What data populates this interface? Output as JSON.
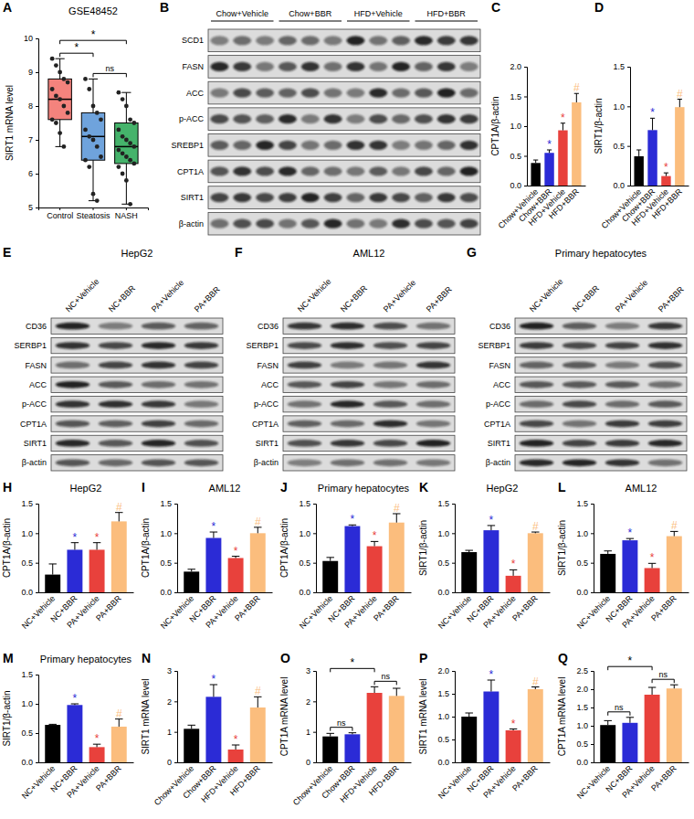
{
  "chart_data": [
    {
      "panel_label": "A",
      "type": "box",
      "title": "GSE48452",
      "y_label": "SIRT1 mRNA level",
      "categories": [
        "Control",
        "Steatosis",
        "NASH"
      ],
      "colors": [
        "#f4837d",
        "#6fa3dc",
        "#45b36b"
      ],
      "boxes": [
        {
          "min": 6.8,
          "q1": 7.6,
          "median": 8.2,
          "q3": 8.8,
          "max": 9.4
        },
        {
          "min": 5.2,
          "q1": 6.4,
          "median": 7.1,
          "q3": 7.8,
          "max": 8.8
        },
        {
          "min": 5.1,
          "q1": 6.3,
          "median": 6.8,
          "q3": 7.5,
          "max": 8.4
        }
      ],
      "points": [
        [
          9.4,
          9.2,
          9.0,
          8.8,
          8.7,
          8.5,
          8.3,
          8.2,
          8.0,
          7.8,
          7.6,
          7.5,
          7.2,
          6.8
        ],
        [
          8.8,
          8.5,
          8.0,
          7.8,
          7.6,
          7.3,
          7.1,
          7.0,
          6.8,
          6.5,
          6.4,
          6.2,
          5.4,
          5.2
        ],
        [
          8.4,
          8.2,
          8.0,
          7.6,
          7.5,
          7.3,
          7.1,
          7.0,
          6.9,
          6.8,
          6.7,
          6.6,
          6.5,
          6.4,
          6.3,
          6.2,
          6.0,
          5.8,
          5.1
        ]
      ],
      "ylim": [
        5,
        10
      ],
      "yticks": [
        5,
        6,
        7,
        8,
        9,
        10
      ],
      "annotations": [
        {
          "text": "ns",
          "from": 1,
          "to": 2
        },
        {
          "text": "*",
          "from": 0,
          "to": 1
        },
        {
          "text": "*",
          "from": 0,
          "to": 2
        }
      ]
    },
    {
      "panel_label": "C",
      "type": "bar",
      "y_label": "CPT1A/β-actin",
      "categories": [
        "Chow+Vehicle",
        "Chow+BBR",
        "HFD+Vehicle",
        "HFD+BBR"
      ],
      "values": [
        0.38,
        0.55,
        0.93,
        1.4
      ],
      "errors": [
        0.05,
        0.05,
        0.12,
        0.15
      ],
      "colors": [
        "#000000",
        "#2b2bd6",
        "#e8413c",
        "#fbbd7d"
      ],
      "ylim": [
        0,
        2
      ],
      "yticks": [
        {
          "value": 0,
          "label": "0.0"
        },
        0.5,
        {
          "value": 1,
          "label": "1.0"
        },
        1.5,
        {
          "value": 2,
          "label": "2.0"
        }
      ],
      "annotations": [
        {
          "text": "*",
          "bar": 1
        },
        {
          "text": "*",
          "bar": 2
        },
        {
          "text": "#",
          "bar": 3
        }
      ]
    },
    {
      "panel_label": "D",
      "type": "bar",
      "y_label": "SIRT1/β-actin",
      "categories": [
        "Chow+Vehicle",
        "Chow+BBR",
        "HFD+Vehicle",
        "HFD+BBR"
      ],
      "values": [
        0.37,
        0.7,
        0.12,
        0.99
      ],
      "errors": [
        0.08,
        0.15,
        0.04,
        0.1
      ],
      "colors": [
        "#000000",
        "#2b2bd6",
        "#e8413c",
        "#fbbd7d"
      ],
      "ylim": [
        0,
        1.5
      ],
      "yticks": [
        {
          "value": 0,
          "label": "0.0"
        },
        0.5,
        {
          "value": 1,
          "label": "1.0"
        },
        1.5
      ],
      "annotations": [
        {
          "text": "*",
          "bar": 1
        },
        {
          "text": "*",
          "bar": 2
        },
        {
          "text": "#",
          "bar": 3
        }
      ]
    },
    {
      "panel_label": "H",
      "type": "bar",
      "title": "HepG2",
      "y_label": "CPT1A/β-actin",
      "categories": [
        "NC+Vehicle",
        "NC+BBR",
        "PA+Vehicle",
        "PA+BBR"
      ],
      "values": [
        0.3,
        0.72,
        0.72,
        1.2
      ],
      "errors": [
        0.18,
        0.12,
        0.12,
        0.15
      ],
      "colors": [
        "#000000",
        "#2b2bd6",
        "#e8413c",
        "#fbbd7d"
      ],
      "ylim": [
        0,
        1.5
      ],
      "yticks": [
        {
          "value": 0,
          "label": "0.0"
        },
        0.5,
        {
          "value": 1,
          "label": "1.0"
        },
        1.5
      ],
      "annotations": [
        {
          "text": "*",
          "bar": 1
        },
        {
          "text": "*",
          "bar": 2
        },
        {
          "text": "#",
          "bar": 3
        }
      ]
    },
    {
      "panel_label": "I",
      "type": "bar",
      "title": "AML12",
      "y_label": "CPT1A/β-actin",
      "categories": [
        "NC+Vehicle",
        "NC+BBR",
        "PA+Vehicle",
        "PA+BBR"
      ],
      "values": [
        0.35,
        0.92,
        0.58,
        1.0
      ],
      "errors": [
        0.04,
        0.1,
        0.03,
        0.1
      ],
      "colors": [
        "#000000",
        "#2b2bd6",
        "#e8413c",
        "#fbbd7d"
      ],
      "ylim": [
        0,
        1.5
      ],
      "yticks": [
        {
          "value": 0,
          "label": "0.0"
        },
        0.5,
        {
          "value": 1,
          "label": "1.0"
        },
        1.5
      ],
      "annotations": [
        {
          "text": "*",
          "bar": 1
        },
        {
          "text": "*",
          "bar": 2
        },
        {
          "text": "#",
          "bar": 3
        }
      ]
    },
    {
      "panel_label": "J",
      "type": "bar",
      "title": "Primary hepatocytes",
      "y_label": "CPT1A/β-actin",
      "categories": [
        "NC+Vehicle",
        "NC+BBR",
        "PA+Vehicle",
        "PA+BBR"
      ],
      "values": [
        0.53,
        1.12,
        0.78,
        1.18
      ],
      "errors": [
        0.06,
        0.02,
        0.08,
        0.15
      ],
      "colors": [
        "#000000",
        "#2b2bd6",
        "#e8413c",
        "#fbbd7d"
      ],
      "ylim": [
        0,
        1.5
      ],
      "yticks": [
        {
          "value": 0,
          "label": "0.0"
        },
        0.5,
        {
          "value": 1,
          "label": "1.0"
        },
        1.5
      ],
      "annotations": [
        {
          "text": "*",
          "bar": 1
        },
        {
          "text": "*",
          "bar": 2
        },
        {
          "text": "#",
          "bar": 3
        }
      ]
    },
    {
      "panel_label": "K",
      "type": "bar",
      "title": "HepG2",
      "y_label": "SIRT1/β-actin",
      "categories": [
        "NC+Vehicle",
        "NC+BBR",
        "PA+Vehicle",
        "PA+BBR"
      ],
      "values": [
        0.68,
        1.05,
        0.28,
        1.0
      ],
      "errors": [
        0.03,
        0.08,
        0.1,
        0.02
      ],
      "colors": [
        "#000000",
        "#2b2bd6",
        "#e8413c",
        "#fbbd7d"
      ],
      "ylim": [
        0,
        1.5
      ],
      "yticks": [
        {
          "value": 0,
          "label": "0.0"
        },
        0.5,
        {
          "value": 1,
          "label": "1.0"
        },
        1.5
      ],
      "annotations": [
        {
          "text": "*",
          "bar": 1
        },
        {
          "text": "*",
          "bar": 2
        },
        {
          "text": "#",
          "bar": 3
        }
      ]
    },
    {
      "panel_label": "L",
      "type": "bar",
      "title": "AML12",
      "y_label": "SIRT1/β-actin",
      "categories": [
        "NC+Vehicle",
        "NC+BBR",
        "PA+Vehicle",
        "PA+BBR"
      ],
      "values": [
        0.65,
        0.88,
        0.41,
        0.95
      ],
      "errors": [
        0.05,
        0.03,
        0.08,
        0.08
      ],
      "colors": [
        "#000000",
        "#2b2bd6",
        "#e8413c",
        "#fbbd7d"
      ],
      "ylim": [
        0,
        1.5
      ],
      "yticks": [
        {
          "value": 0,
          "label": "0.0"
        },
        0.5,
        {
          "value": 1,
          "label": "1.0"
        },
        1.5
      ],
      "annotations": [
        {
          "text": "*",
          "bar": 1
        },
        {
          "text": "*",
          "bar": 2
        },
        {
          "text": "#",
          "bar": 3
        }
      ]
    },
    {
      "panel_label": "M",
      "type": "bar",
      "title": "Primary hepatocytes",
      "y_label": "SIRT1/β-actin",
      "categories": [
        "NC+Vehicle",
        "NC+BBR",
        "PA+Vehicle",
        "PA+BBR"
      ],
      "values": [
        0.64,
        0.98,
        0.26,
        0.61
      ],
      "errors": [
        0.01,
        0.02,
        0.05,
        0.13
      ],
      "colors": [
        "#000000",
        "#2b2bd6",
        "#e8413c",
        "#fbbd7d"
      ],
      "ylim": [
        0,
        1.5
      ],
      "yticks": [
        {
          "value": 0,
          "label": "0.0"
        },
        0.5,
        {
          "value": 1,
          "label": "1.0"
        },
        1.5
      ],
      "annotations": [
        {
          "text": "*",
          "bar": 1
        },
        {
          "text": "*",
          "bar": 2
        },
        {
          "text": "#",
          "bar": 3
        }
      ]
    },
    {
      "panel_label": "N",
      "type": "bar",
      "y_label": "SIRT1 mRNA level",
      "categories": [
        "Chow+Vehicle",
        "Chow+BBR",
        "HFD+Vehicle",
        "HFD+BBR"
      ],
      "values": [
        1.1,
        2.15,
        0.42,
        1.8
      ],
      "errors": [
        0.12,
        0.4,
        0.15,
        0.35
      ],
      "colors": [
        "#000000",
        "#2b2bd6",
        "#e8413c",
        "#fbbd7d"
      ],
      "ylim": [
        0,
        3
      ],
      "yticks": [
        0,
        1,
        2,
        3
      ],
      "annotations": [
        {
          "text": "*",
          "bar": 1
        },
        {
          "text": "*",
          "bar": 2
        },
        {
          "text": "#",
          "bar": 3
        }
      ]
    },
    {
      "panel_label": "O",
      "type": "bar",
      "y_label": "CPT1A mRNA level",
      "categories": [
        "Chow+Vehicle",
        "Chow+BBR",
        "HFD+Vehicle",
        "HFD+BBR"
      ],
      "values": [
        0.85,
        0.92,
        2.28,
        2.18
      ],
      "errors": [
        0.1,
        0.05,
        0.2,
        0.25
      ],
      "colors": [
        "#000000",
        "#2b2bd6",
        "#e8413c",
        "#fbbd7d"
      ],
      "ylim": [
        0,
        3
      ],
      "yticks": [
        0,
        1,
        2,
        3
      ],
      "annotations": [
        {
          "text": "ns",
          "from": 0,
          "to": 1
        },
        {
          "text": "ns",
          "from": 2,
          "to": 3
        },
        {
          "text": "*",
          "from": 0,
          "to": 2
        }
      ]
    },
    {
      "panel_label": "P",
      "type": "bar",
      "y_label": "SIRT1 mRNA level",
      "categories": [
        "NC+Vehicle",
        "NC+BBR",
        "PA+Vehicle",
        "PA+BBR"
      ],
      "values": [
        1.0,
        1.55,
        0.7,
        1.6
      ],
      "errors": [
        0.08,
        0.25,
        0.03,
        0.05
      ],
      "colors": [
        "#000000",
        "#2b2bd6",
        "#e8413c",
        "#fbbd7d"
      ],
      "ylim": [
        0,
        2
      ],
      "yticks": [
        {
          "value": 0,
          "label": "0.0"
        },
        0.5,
        {
          "value": 1,
          "label": "1.0"
        },
        1.5,
        {
          "value": 2,
          "label": "2.0"
        }
      ],
      "annotations": [
        {
          "text": "*",
          "bar": 1
        },
        {
          "text": "*",
          "bar": 2
        },
        {
          "text": "#",
          "bar": 3
        }
      ]
    },
    {
      "panel_label": "Q",
      "type": "bar",
      "y_label": "CPT1A mRNA level",
      "categories": [
        "NC+Vehicle",
        "NC+BBR",
        "PA+Vehicle",
        "PA+BBR"
      ],
      "values": [
        1.02,
        1.08,
        1.85,
        2.02
      ],
      "errors": [
        0.12,
        0.15,
        0.2,
        0.1
      ],
      "colors": [
        "#000000",
        "#2b2bd6",
        "#e8413c",
        "#fbbd7d"
      ],
      "ylim": [
        0,
        2.5
      ],
      "yticks": [
        {
          "value": 0,
          "label": "0.0"
        },
        0.5,
        {
          "value": 1,
          "label": "1.0"
        },
        1.5,
        {
          "value": 2,
          "label": "2.0"
        },
        2.5
      ],
      "annotations": [
        {
          "text": "ns",
          "from": 0,
          "to": 1
        },
        {
          "text": "ns",
          "from": 2,
          "to": 3
        },
        {
          "text": "*",
          "from": 0,
          "to": 2
        }
      ]
    }
  ],
  "blots": [
    {
      "panel_label": "B",
      "groups": [
        "Chow+Vehicle",
        "Chow+BBR",
        "HFD+Vehicle",
        "HFD+BBR"
      ],
      "lanes_per_group": 3,
      "proteins": [
        "SCD1",
        "FASN",
        "ACC",
        "p-ACC",
        "SREBP1",
        "CPT1A",
        "SIRT1",
        "β-actin"
      ]
    },
    {
      "panel_label": "E",
      "title": "HepG2",
      "groups": [
        "NC+Vehicle",
        "NC+BBR",
        "PA+Vehicle",
        "PA+BBR"
      ],
      "lanes_per_group": 1,
      "proteins": [
        "CD36",
        "SERBP1",
        "FASN",
        "ACC",
        "p-ACC",
        "CPT1A",
        "SIRT1",
        "β-actin"
      ]
    },
    {
      "panel_label": "F",
      "title": "AML12",
      "groups": [
        "NC+Vehicle",
        "NC+BBR",
        "PA+Vehicle",
        "PA+BBR"
      ],
      "lanes_per_group": 1,
      "proteins": [
        "CD36",
        "SERBP1",
        "FASN",
        "ACC",
        "p-ACC",
        "CPT1A",
        "SIRT1",
        "β-actin"
      ]
    },
    {
      "panel_label": "G",
      "title": "Primary hepatocytes",
      "groups": [
        "NC+Vehicle",
        "NC+BBR",
        "PA+Vehicle",
        "PA+BBR"
      ],
      "lanes_per_group": 1,
      "proteins": [
        "CD36",
        "SERBP1",
        "FASN",
        "ACC",
        "p-ACC",
        "CPT1A",
        "SIRT1",
        "β-actin"
      ]
    }
  ]
}
